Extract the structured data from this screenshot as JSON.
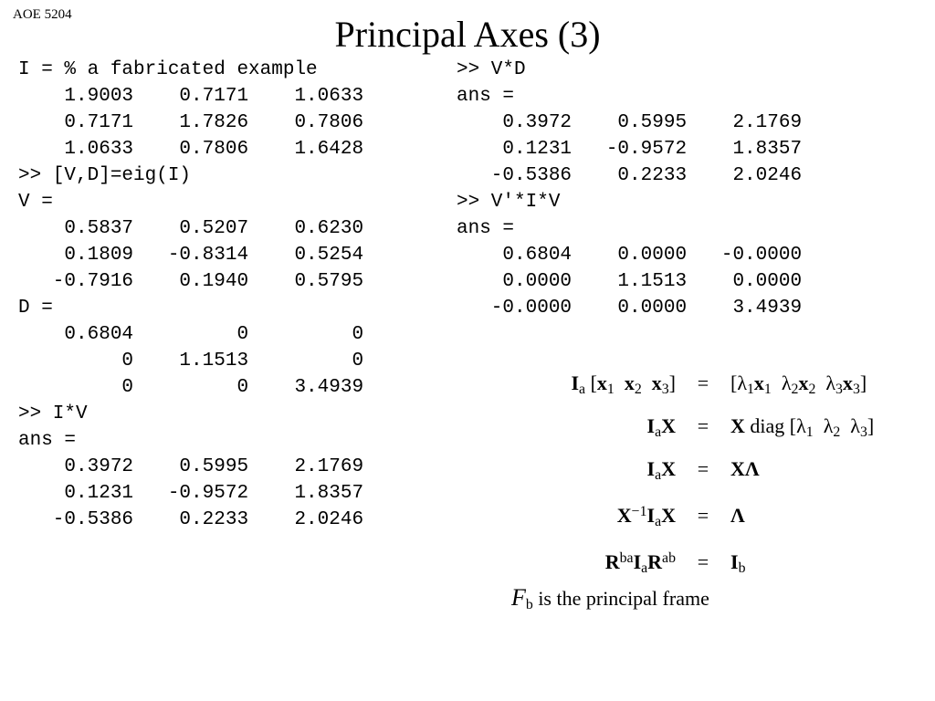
{
  "course_code": "AOE 5204",
  "title": "Principal Axes (3)",
  "left_block": "I = % a fabricated example\n    1.9003    0.7171    1.0633\n    0.7171    1.7826    0.7806\n    1.0633    0.7806    1.6428\n>> [V,D]=eig(I)\nV =\n    0.5837    0.5207    0.6230\n    0.1809   -0.8314    0.5254\n   -0.7916    0.1940    0.5795\nD =\n    0.6804         0         0\n         0    1.1513         0\n         0         0    3.4939\n>> I*V\nans =\n    0.3972    0.5995    2.1769\n    0.1231   -0.9572    1.8357\n   -0.5386    0.2233    2.0246",
  "right_block": ">> V*D\nans =\n    0.3972    0.5995    2.1769\n    0.1231   -0.9572    1.8357\n   -0.5386    0.2233    2.0246\n>> V'*I*V\nans =\n    0.6804    0.0000   -0.0000\n    0.0000    1.1513    0.0000\n   -0.0000    0.0000    3.4939",
  "frame_note_tail": " is the principal frame",
  "colors": {
    "text": "#000000",
    "background": "#ffffff"
  },
  "fonts": {
    "mono": "Courier New",
    "title": "Comic Sans / script-like",
    "serif": "Georgia / Times"
  },
  "matrices": {
    "I": [
      [
        1.9003,
        0.7171,
        1.0633
      ],
      [
        0.7171,
        1.7826,
        0.7806
      ],
      [
        1.0633,
        0.7806,
        1.6428
      ]
    ],
    "V": [
      [
        0.5837,
        0.5207,
        0.623
      ],
      [
        0.1809,
        -0.8314,
        0.5254
      ],
      [
        -0.7916,
        0.194,
        0.5795
      ]
    ],
    "D": [
      [
        0.6804,
        0,
        0
      ],
      [
        0,
        1.1513,
        0
      ],
      [
        0,
        0,
        3.4939
      ]
    ],
    "IV": [
      [
        0.3972,
        0.5995,
        2.1769
      ],
      [
        0.1231,
        -0.9572,
        1.8357
      ],
      [
        -0.5386,
        0.2233,
        2.0246
      ]
    ],
    "VD": [
      [
        0.3972,
        0.5995,
        2.1769
      ],
      [
        0.1231,
        -0.9572,
        1.8357
      ],
      [
        -0.5386,
        0.2233,
        2.0246
      ]
    ],
    "VtIV": [
      [
        0.6804,
        0.0,
        -0.0
      ],
      [
        0.0,
        1.1513,
        0.0
      ],
      [
        -0.0,
        0.0,
        3.4939
      ]
    ]
  },
  "equations": [
    {
      "lhs": "I_a [x1 x2 x3]",
      "rhs": "[λ1 x1  λ2 x2  λ3 x3]"
    },
    {
      "lhs": "I_a X",
      "rhs": "X diag [λ1 λ2 λ3]"
    },
    {
      "lhs": "I_a X",
      "rhs": "X Λ"
    },
    {
      "lhs": "X^{-1} I_a X",
      "rhs": "Λ"
    },
    {
      "lhs": "R^{ba} I_a R^{ab}",
      "rhs": "I_b"
    }
  ]
}
